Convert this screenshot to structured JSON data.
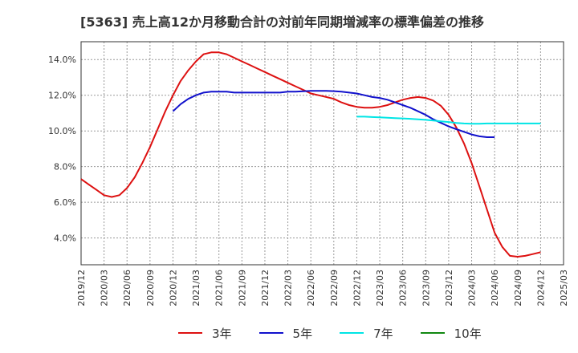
{
  "chart_data": {
    "type": "line",
    "title": "[5363]  売上高12か月移動合計の対前年同期増減率の標準偏差の推移",
    "xlabel": "",
    "ylabel": "",
    "x_ticks": [
      "2019/12",
      "2020/03",
      "2020/06",
      "2020/09",
      "2020/12",
      "2021/03",
      "2021/06",
      "2021/09",
      "2021/12",
      "2022/03",
      "2022/06",
      "2022/09",
      "2022/12",
      "2023/03",
      "2023/06",
      "2023/09",
      "2023/12",
      "2024/03",
      "2024/06",
      "2024/09",
      "2024/12",
      "2025/03"
    ],
    "y_ticks": [
      "4.0%",
      "6.0%",
      "8.0%",
      "10.0%",
      "12.0%",
      "14.0%"
    ],
    "ylim": [
      2.5,
      15.0
    ],
    "grid": true,
    "legend_position": "bottom",
    "series": [
      {
        "name": "3年",
        "color": "#dd1111",
        "start_index": 0,
        "values": [
          7.3,
          7.0,
          6.7,
          6.4,
          6.3,
          6.4,
          6.8,
          7.4,
          8.2,
          9.1,
          10.1,
          11.1,
          12.0,
          12.8,
          13.4,
          13.9,
          14.3,
          14.4,
          14.4,
          14.3,
          14.1,
          13.9,
          13.7,
          13.5,
          13.3,
          13.1,
          12.9,
          12.7,
          12.5,
          12.3,
          12.1,
          12.0,
          11.9,
          11.8,
          11.6,
          11.45,
          11.35,
          11.3,
          11.3,
          11.35,
          11.45,
          11.6,
          11.75,
          11.85,
          11.9,
          11.85,
          11.7,
          11.4,
          10.9,
          10.2,
          9.3,
          8.2,
          6.9,
          5.6,
          4.3,
          3.5,
          3.0,
          2.95,
          3.0,
          3.1,
          3.2
        ]
      },
      {
        "name": "5年",
        "color": "#1111cc",
        "start_index": 12,
        "values": [
          11.1,
          11.5,
          11.8,
          12.0,
          12.15,
          12.2,
          12.2,
          12.2,
          12.15,
          12.15,
          12.15,
          12.15,
          12.15,
          12.15,
          12.15,
          12.2,
          12.2,
          12.22,
          12.25,
          12.25,
          12.25,
          12.23,
          12.2,
          12.15,
          12.1,
          12.0,
          11.9,
          11.85,
          11.75,
          11.6,
          11.45,
          11.3,
          11.1,
          10.9,
          10.65,
          10.45,
          10.25,
          10.1,
          9.95,
          9.8,
          9.7,
          9.65,
          9.65
        ]
      },
      {
        "name": "7年",
        "color": "#00e5e5",
        "start_index": 36,
        "values": [
          10.8,
          10.8,
          10.78,
          10.76,
          10.74,
          10.72,
          10.7,
          10.68,
          10.65,
          10.62,
          10.58,
          10.54,
          10.5,
          10.45,
          10.42,
          10.4,
          10.4,
          10.42,
          10.42,
          10.42,
          10.42,
          10.42,
          10.42,
          10.42,
          10.42
        ]
      },
      {
        "name": "10年",
        "color": "#118811",
        "start_index": 0,
        "values": []
      }
    ]
  }
}
